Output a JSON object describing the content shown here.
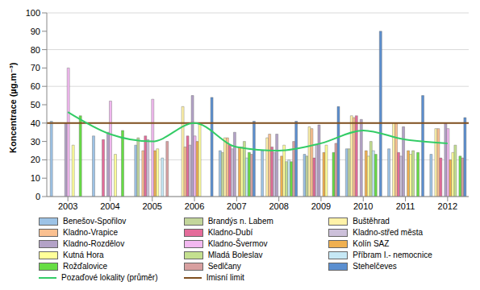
{
  "chart_data": {
    "type": "bar",
    "y_label": "Koncentrace (µg.m⁻³)",
    "categories": [
      "2003",
      "2004",
      "2005",
      "2006",
      "2007",
      "2008",
      "2009",
      "2010",
      "2011",
      "2012"
    ],
    "ylim": [
      0,
      100
    ],
    "yticks": [
      0,
      10,
      20,
      30,
      40,
      50,
      60,
      70,
      80,
      90,
      100
    ],
    "grid": true,
    "series": [
      {
        "name": "Benešov-Spořilov",
        "color": "#9dc3e6",
        "values": [
          41,
          33,
          28,
          null,
          25,
          25,
          23,
          26,
          26,
          23
        ]
      },
      {
        "name": "Brandýs n. Labem",
        "color": "#c3d69b",
        "values": [
          null,
          null,
          32,
          null,
          24,
          null,
          22,
          26,
          null,
          null
        ]
      },
      {
        "name": "Buštěhrad",
        "color": "#fff2a8",
        "values": [
          null,
          null,
          null,
          49,
          32,
          32,
          38,
          44,
          40,
          37
        ]
      },
      {
        "name": "Kladno-Vrapice",
        "color": "#fac090",
        "values": [
          null,
          null,
          25,
          27,
          32,
          34,
          37,
          43,
          40,
          37
        ]
      },
      {
        "name": "Kladno-Dubí",
        "color": "#e46c9a",
        "values": [
          null,
          31,
          33,
          33,
          28,
          27,
          21,
          44,
          24,
          21
        ]
      },
      {
        "name": "Kladno-střed města",
        "color": "#ccc0da",
        "values": [
          null,
          null,
          31,
          28,
          26,
          24,
          28,
          null,
          22,
          null
        ]
      },
      {
        "name": "Kladno-Rozdělov",
        "color": "#b3a2c7",
        "values": [
          40,
          35,
          null,
          55,
          35,
          34,
          39,
          42,
          38,
          40
        ]
      },
      {
        "name": "Kladno-Švermov",
        "color": "#f2b8f0",
        "values": [
          70,
          52,
          53,
          33,
          null,
          null,
          null,
          null,
          null,
          37
        ]
      },
      {
        "name": "Kolín SAZ",
        "color": "#f0b050",
        "values": [
          null,
          null,
          25,
          30,
          27,
          22,
          24,
          25,
          25,
          20
        ]
      },
      {
        "name": "Kutná Hora",
        "color": "#ffff99",
        "values": [
          28,
          23,
          26,
          40,
          27,
          28,
          28,
          22,
          23,
          24
        ]
      },
      {
        "name": "Mladá Boleslav",
        "color": "#c4e08f",
        "values": [
          null,
          null,
          null,
          null,
          30,
          19,
          null,
          30,
          25,
          28
        ]
      },
      {
        "name": "Příbram I.- nemocnice",
        "color": "#c6e8f5",
        "values": [
          null,
          null,
          21,
          null,
          21,
          20,
          null,
          25,
          null,
          null
        ]
      },
      {
        "name": "Rožďalovice",
        "color": "#66dd44",
        "values": [
          44,
          36,
          null,
          null,
          24,
          19,
          24,
          23,
          24,
          22
        ]
      },
      {
        "name": "Sedlčany",
        "color": "#d8a0a0",
        "values": [
          null,
          null,
          30,
          null,
          23,
          30,
          29,
          null,
          null,
          21
        ]
      },
      {
        "name": "Stehelčeves",
        "color": "#5b8fd0",
        "values": [
          null,
          null,
          null,
          54,
          41,
          41,
          49,
          90,
          55,
          43
        ]
      },
      {
        "name": "Pozaďové lokality (průměr)",
        "type": "line",
        "color": "#33cc66",
        "values": [
          46,
          34,
          30,
          40,
          27,
          25,
          29,
          36,
          31,
          29
        ]
      }
    ],
    "reference_lines": [
      {
        "name": "Imisní limit",
        "value": 40,
        "color": "#7f4f1f"
      }
    ]
  }
}
